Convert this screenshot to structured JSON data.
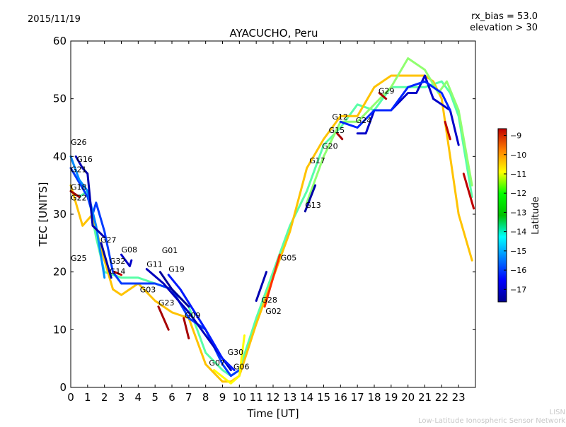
{
  "header": {
    "date": "2015/11/19",
    "rx_bias": "rx_bias = 53.0",
    "elevation": "elevation > 30"
  },
  "footer": {
    "brand": "LISN",
    "network": "Low-Latitude Ionospheric Sensor Network"
  },
  "chart_data": {
    "type": "line",
    "title": "AYACUCHO, Peru",
    "xlabel": "Time [UT]",
    "ylabel": "TEC [UNITS]",
    "xlim": [
      0,
      24
    ],
    "ylim": [
      0,
      60
    ],
    "xticks": [
      0,
      1,
      2,
      3,
      4,
      5,
      6,
      7,
      8,
      9,
      10,
      11,
      12,
      13,
      14,
      15,
      16,
      17,
      18,
      19,
      20,
      21,
      22,
      23
    ],
    "yticks": [
      0,
      10,
      20,
      30,
      40,
      50,
      60
    ],
    "grid": false,
    "colorbar": {
      "label": "Latitude",
      "range": [
        -17.65,
        -8.65
      ],
      "ticks": [
        -9,
        -10,
        -11,
        -12,
        -13,
        -14,
        -15,
        -16,
        -17
      ],
      "colormap": "jet"
    },
    "series": [
      {
        "lat": -13.5,
        "points": [
          [
            0,
            34
          ],
          [
            0.5,
            33
          ],
          [
            1,
            34
          ],
          [
            1.5,
            26
          ],
          [
            2,
            20
          ],
          [
            3,
            19
          ],
          [
            4,
            19
          ],
          [
            5,
            18
          ],
          [
            6,
            17
          ],
          [
            7,
            14
          ],
          [
            8,
            6
          ],
          [
            9,
            3
          ],
          [
            9.5,
            2
          ],
          [
            10,
            3
          ],
          [
            11,
            12
          ],
          [
            12,
            20
          ],
          [
            13,
            28
          ],
          [
            14,
            34
          ],
          [
            15,
            42
          ],
          [
            16,
            45
          ],
          [
            17,
            49
          ],
          [
            18,
            48
          ],
          [
            19,
            52
          ],
          [
            20,
            52
          ],
          [
            21,
            52
          ],
          [
            22,
            53
          ],
          [
            22.5,
            51
          ],
          [
            23,
            47
          ],
          [
            23.8,
            33
          ]
        ]
      },
      {
        "lat": -11.5,
        "points": [
          [
            0,
            35
          ],
          [
            0.7,
            28
          ],
          [
            1.3,
            30
          ],
          [
            1.8,
            24
          ],
          [
            2.5,
            17
          ],
          [
            3,
            16
          ],
          [
            4,
            18
          ],
          [
            5,
            15
          ],
          [
            6,
            13
          ],
          [
            7,
            12
          ],
          [
            8,
            4
          ],
          [
            9,
            1
          ],
          [
            9.5,
            1
          ],
          [
            10,
            2
          ],
          [
            11,
            11
          ],
          [
            12,
            19
          ],
          [
            13,
            27
          ],
          [
            14,
            38
          ],
          [
            15,
            43
          ],
          [
            16,
            47
          ],
          [
            17,
            47
          ],
          [
            18,
            52
          ],
          [
            19,
            54
          ],
          [
            20,
            54
          ],
          [
            21,
            54
          ],
          [
            21.5,
            53
          ],
          [
            22,
            50
          ],
          [
            23,
            30
          ],
          [
            23.8,
            22
          ]
        ]
      },
      {
        "lat": -16.0,
        "points": [
          [
            0,
            38
          ],
          [
            1,
            33
          ],
          [
            1.3,
            30
          ],
          [
            1.5,
            32
          ],
          [
            2,
            27
          ],
          [
            2.5,
            20
          ],
          [
            3,
            18
          ],
          [
            4,
            18
          ],
          [
            5,
            18
          ],
          [
            6,
            17
          ],
          [
            7,
            12
          ],
          [
            8,
            10
          ],
          [
            9,
            4
          ],
          [
            9.5,
            2
          ],
          [
            10,
            3
          ]
        ]
      },
      {
        "lat": -15.3,
        "points": [
          [
            0,
            40
          ],
          [
            0.5,
            36
          ],
          [
            1,
            34
          ],
          [
            1.5,
            28
          ],
          [
            2,
            19
          ]
        ]
      },
      {
        "lat": -17.2,
        "points": [
          [
            0.3,
            40
          ],
          [
            0.7,
            38
          ],
          [
            1,
            37
          ],
          [
            1.3,
            28
          ],
          [
            2,
            26
          ]
        ]
      },
      {
        "lat": -13.0,
        "points": [
          [
            14,
            32
          ],
          [
            15,
            40
          ],
          [
            16,
            46
          ],
          [
            17,
            46
          ],
          [
            18,
            49
          ],
          [
            19,
            52
          ],
          [
            20,
            57
          ],
          [
            21,
            55
          ],
          [
            21.8,
            51
          ],
          [
            22.3,
            53
          ],
          [
            23,
            48
          ],
          [
            23.8,
            35
          ]
        ]
      },
      {
        "lat": -17.0,
        "points": [
          [
            17,
            44
          ],
          [
            17.5,
            44
          ],
          [
            18,
            48
          ],
          [
            19,
            48
          ],
          [
            20,
            51
          ],
          [
            20.5,
            51
          ],
          [
            21,
            54
          ],
          [
            21.5,
            50
          ],
          [
            22,
            49
          ],
          [
            22.5,
            48
          ],
          [
            23,
            42
          ]
        ]
      },
      {
        "lat": -16.2,
        "points": [
          [
            16,
            46
          ],
          [
            17,
            45
          ],
          [
            18,
            48
          ],
          [
            19,
            48
          ],
          [
            20,
            52
          ],
          [
            21,
            53
          ],
          [
            22,
            51
          ],
          [
            22.5,
            48
          ]
        ]
      },
      {
        "lat": -17.3,
        "points": [
          [
            1.8,
            25
          ],
          [
            2.4,
            19
          ]
        ]
      },
      {
        "lat": -17.0,
        "points": [
          [
            3,
            23
          ],
          [
            3.5,
            21
          ],
          [
            3.6,
            22
          ]
        ]
      },
      {
        "lat": -17.1,
        "points": [
          [
            4.5,
            20.5
          ],
          [
            5.5,
            18
          ],
          [
            7,
            13
          ],
          [
            8.5,
            7
          ],
          [
            9.5,
            3
          ]
        ]
      },
      {
        "lat": -17.4,
        "points": [
          [
            5.3,
            20
          ],
          [
            6,
            17
          ],
          [
            7,
            14
          ]
        ]
      },
      {
        "lat": -16.3,
        "points": [
          [
            5.8,
            19.5
          ],
          [
            6.5,
            17
          ],
          [
            8,
            10
          ],
          [
            9,
            5
          ],
          [
            9.7,
            3
          ]
        ]
      },
      {
        "lat": -9.0,
        "points": [
          [
            5.2,
            14
          ],
          [
            5.8,
            10
          ]
        ]
      },
      {
        "lat": -9.0,
        "points": [
          [
            6.7,
            12
          ],
          [
            7,
            8.5
          ]
        ]
      },
      {
        "lat": -17.3,
        "points": [
          [
            13.9,
            30.5
          ],
          [
            14.5,
            35
          ]
        ]
      },
      {
        "lat": -9.0,
        "points": [
          [
            18.3,
            51
          ],
          [
            18.7,
            50
          ]
        ]
      },
      {
        "lat": -9.0,
        "points": [
          [
            15.8,
            44
          ],
          [
            16.1,
            43
          ]
        ]
      },
      {
        "lat": -9.2,
        "points": [
          [
            22.2,
            46
          ],
          [
            22.5,
            43
          ]
        ]
      },
      {
        "lat": -9.2,
        "points": [
          [
            23.3,
            37
          ],
          [
            23.9,
            31
          ]
        ]
      },
      {
        "lat": -9.0,
        "points": [
          [
            0,
            34
          ],
          [
            0.5,
            33
          ]
        ]
      },
      {
        "lat": -17.2,
        "points": [
          [
            11,
            15
          ],
          [
            11.6,
            20
          ]
        ]
      },
      {
        "lat": -10.2,
        "points": [
          [
            11.5,
            14
          ],
          [
            12.4,
            23
          ]
        ]
      },
      {
        "lat": -12.0,
        "points": [
          [
            8.5,
            3
          ],
          [
            9.5,
            0.7
          ],
          [
            10,
            2
          ],
          [
            10.3,
            9
          ]
        ]
      },
      {
        "lat": -9.3,
        "points": [
          [
            2.6,
            20
          ],
          [
            3,
            19.5
          ]
        ]
      }
    ],
    "annotations": [
      {
        "text": "G26",
        "t": 0,
        "tec": 42
      },
      {
        "text": "G16",
        "t": 0.35,
        "tec": 40.4
      },
      {
        "text": "G21",
        "t": 0,
        "tec": 40
      },
      {
        "text": "G18",
        "t": 0,
        "tec": 35.6
      },
      {
        "text": "G22",
        "t": 0,
        "tec": 35.1
      },
      {
        "text": "G25",
        "t": 0,
        "tec": 21.9
      },
      {
        "text": "G27",
        "t": 1.76,
        "tec": 25.1
      },
      {
        "text": "G08",
        "t": 3.0,
        "tec": 23.4
      },
      {
        "text": "G32",
        "t": 2.3,
        "tec": 21.4
      },
      {
        "text": "G14",
        "t": 2.3,
        "tec": 21.0
      },
      {
        "text": "G11",
        "t": 4.5,
        "tec": 20.9
      },
      {
        "text": "G01",
        "t": 5.4,
        "tec": 20.6
      },
      {
        "text": "G19",
        "t": 5.8,
        "tec": 20.0
      },
      {
        "text": "G03",
        "t": 4.1,
        "tec": 16.5
      },
      {
        "text": "G23",
        "t": 5.2,
        "tec": 14.2
      },
      {
        "text": "G09",
        "t": 6.75,
        "tec": 12.0
      },
      {
        "text": "G07",
        "t": 8.2,
        "tec": 3.8
      },
      {
        "text": "G06",
        "t": 9.65,
        "tec": 3.1
      },
      {
        "text": "G30",
        "t": 9.3,
        "tec": 1.6
      },
      {
        "text": "G28",
        "t": 11.3,
        "tec": 14.7
      },
      {
        "text": "G02",
        "t": 11.55,
        "tec": 14.1
      },
      {
        "text": "G05",
        "t": 12.45,
        "tec": 22.0
      },
      {
        "text": "G13",
        "t": 13.9,
        "tec": 31.1
      },
      {
        "text": "G17",
        "t": 14.15,
        "tec": 38.8
      },
      {
        "text": "G20",
        "t": 14.9,
        "tec": 40.0
      },
      {
        "text": "G15",
        "t": 15.3,
        "tec": 41.4
      },
      {
        "text": "G12",
        "t": 15.5,
        "tec": 46.4
      },
      {
        "text": "G24",
        "t": 16.9,
        "tec": 45.8
      },
      {
        "text": "G29",
        "t": 18.25,
        "tec": 50.9
      }
    ]
  }
}
